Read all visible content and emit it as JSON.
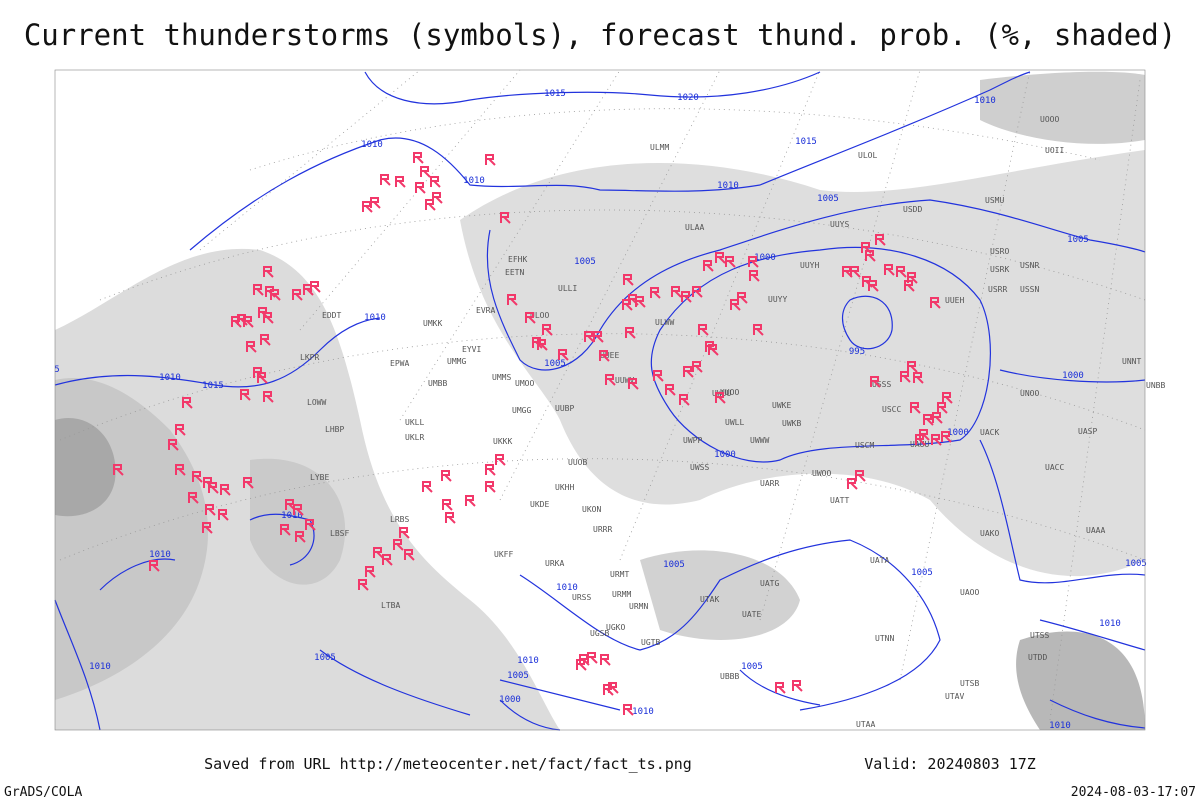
{
  "title": "Current thunderstorms (symbols), forecast thund. prob. (%, shaded)",
  "footer": {
    "source": "Saved from URL http://meteocenter.net/fact/fact_ts.png",
    "valid": "Valid: 20240803 17Z",
    "credit": "GrADS/COLA",
    "timestamp": "2024-08-03-17:07"
  },
  "isobar_labels": [
    "1015",
    "1020",
    "1010",
    "1015",
    "1010",
    "1010",
    "1010",
    "1005",
    "1005",
    "1005",
    "1000",
    "1010",
    "995",
    "1005",
    "1010",
    "1015",
    "1000",
    "1000",
    "1000",
    "1010",
    "1010",
    "1005",
    "1005",
    "1005",
    "1010",
    "1010",
    "1005",
    "1010",
    "1005",
    "1005",
    "1000",
    "1010",
    "1010",
    "1010",
    "5"
  ],
  "stations": [
    "ULMM",
    "ULOL",
    "USDD",
    "USMU",
    "UUYS",
    "ULAA",
    "UUYH",
    "UUYY",
    "UUEH",
    "USRR",
    "USSN",
    "USRK",
    "USNR",
    "USRO",
    "UOOO",
    "UOII",
    "ULOO",
    "ULWW",
    "UUEE",
    "UUWV",
    "UUOO",
    "UWKE",
    "UWKB",
    "UWLL",
    "UWWW",
    "USCC",
    "USCM",
    "UAUU",
    "UACK",
    "UNOO",
    "UASP",
    "UACC",
    "UAKO",
    "UWPP",
    "UWSS",
    "UARR",
    "UWOO",
    "UATT",
    "UATE",
    "UATG",
    "UATA",
    "UAOO",
    "UTAK",
    "UTNN",
    "UTSB",
    "UTAV",
    "UTAA",
    "UUOB",
    "UUBP",
    "UMGG",
    "UMMS",
    "UMOO",
    "UMBB",
    "UMMG",
    "EYVI",
    "UMKK",
    "EVRA",
    "EETN",
    "EFHK",
    "UKLL",
    "UKLR",
    "UKKK",
    "UKHH",
    "UKDE",
    "UKON",
    "URRR",
    "UKFF",
    "URKA",
    "URSS",
    "URMM",
    "URMN",
    "URMT",
    "UGSB",
    "UGKO",
    "UGTB",
    "UBBB",
    "UTDD",
    "UTSS",
    "EPWA",
    "EDDT",
    "LKPR",
    "LOWW",
    "LHBP",
    "LYBE",
    "LBSF",
    "LRBS",
    "LTBA",
    "ULLI",
    "USSS",
    "UNNT",
    "UNBB",
    "UWUU",
    "UAAA"
  ]
}
